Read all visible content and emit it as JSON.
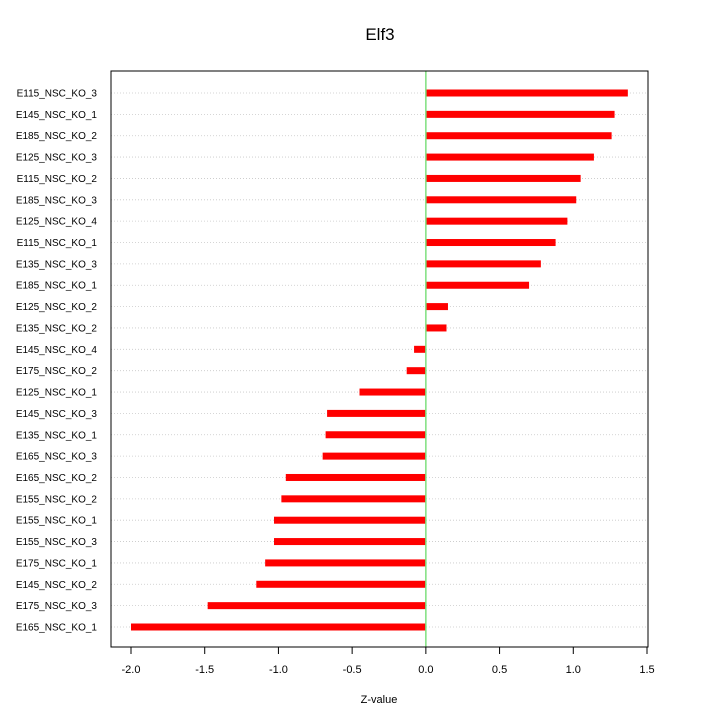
{
  "chart_data": {
    "type": "bar",
    "orientation": "horizontal",
    "title": "Elf3",
    "xlabel": "Z-value",
    "ylabel": "",
    "xlim": [
      -2.0,
      1.5
    ],
    "xticks": [
      "-2.0",
      "-1.5",
      "-1.0",
      "-0.5",
      "0.0",
      "0.5",
      "1.0",
      "1.5"
    ],
    "grid": "horizontal dotted lines at each category",
    "reference_line": {
      "value": 0.0,
      "color": "#7ee07e"
    },
    "bar_color": "#ff0000",
    "categories": [
      "E115_NSC_KO_3",
      "E145_NSC_KO_1",
      "E185_NSC_KO_2",
      "E125_NSC_KO_3",
      "E115_NSC_KO_2",
      "E185_NSC_KO_3",
      "E125_NSC_KO_4",
      "E115_NSC_KO_1",
      "E135_NSC_KO_3",
      "E185_NSC_KO_1",
      "E125_NSC_KO_2",
      "E135_NSC_KO_2",
      "E145_NSC_KO_4",
      "E175_NSC_KO_2",
      "E125_NSC_KO_1",
      "E145_NSC_KO_3",
      "E135_NSC_KO_1",
      "E165_NSC_KO_3",
      "E165_NSC_KO_2",
      "E155_NSC_KO_2",
      "E155_NSC_KO_1",
      "E155_NSC_KO_3",
      "E175_NSC_KO_1",
      "E145_NSC_KO_2",
      "E175_NSC_KO_3",
      "E165_NSC_KO_1"
    ],
    "values": [
      1.37,
      1.28,
      1.26,
      1.14,
      1.05,
      1.02,
      0.96,
      0.88,
      0.78,
      0.7,
      0.15,
      0.14,
      -0.08,
      -0.13,
      -0.45,
      -0.67,
      -0.68,
      -0.7,
      -0.95,
      -0.98,
      -1.03,
      -1.03,
      -1.09,
      -1.15,
      -1.48,
      -2.0
    ]
  }
}
